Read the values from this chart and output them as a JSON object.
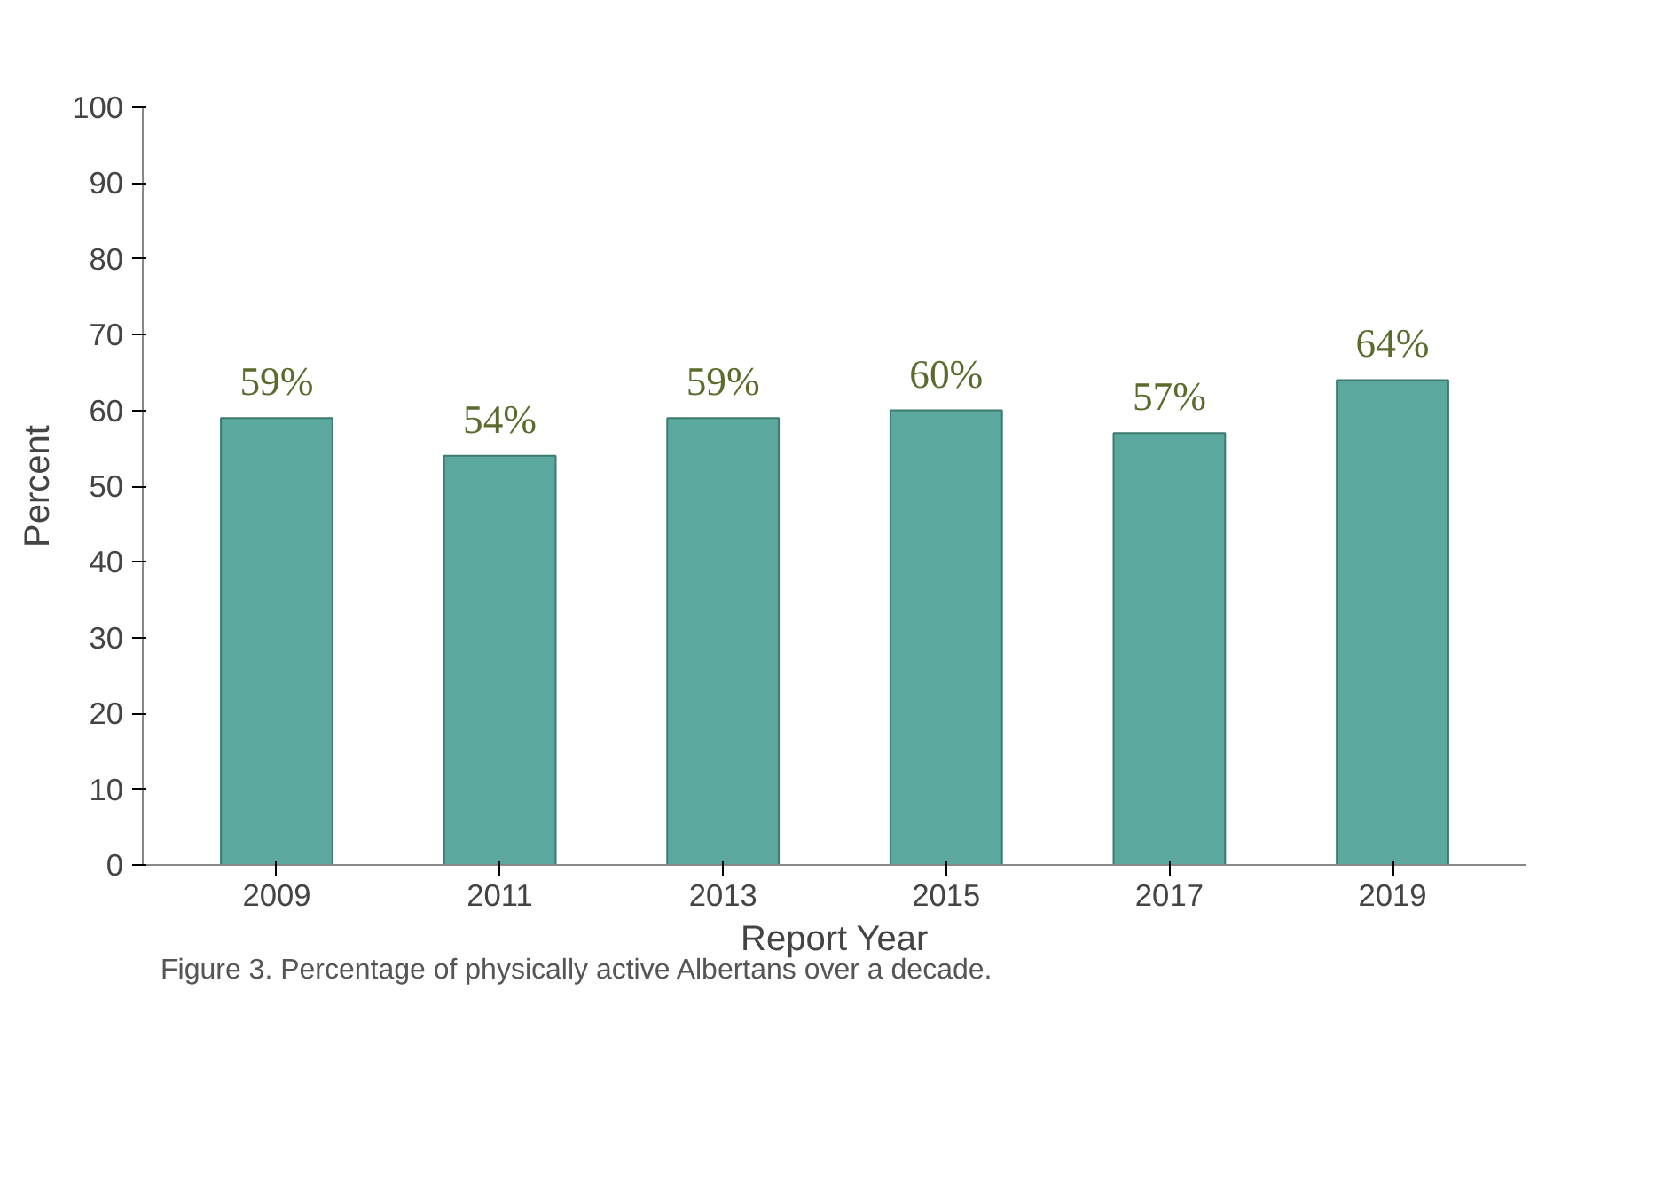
{
  "chart_data": {
    "type": "bar",
    "xlabel": "Report Year",
    "ylabel": "Percent",
    "categories": [
      "2009",
      "2011",
      "2013",
      "2015",
      "2017",
      "2019"
    ],
    "values": [
      59,
      54,
      59,
      60,
      57,
      64
    ],
    "value_labels": [
      "59%",
      "54%",
      "59%",
      "60%",
      "57%",
      "64%"
    ],
    "color": "#5ba89e",
    "ylim": [
      0,
      100
    ],
    "yticks": [
      0,
      10,
      20,
      30,
      40,
      50,
      60,
      70,
      80,
      90,
      100
    ],
    "grid": false,
    "annotations": [
      "Figure 3. Percentage of physically active Albertans over a decade."
    ]
  }
}
